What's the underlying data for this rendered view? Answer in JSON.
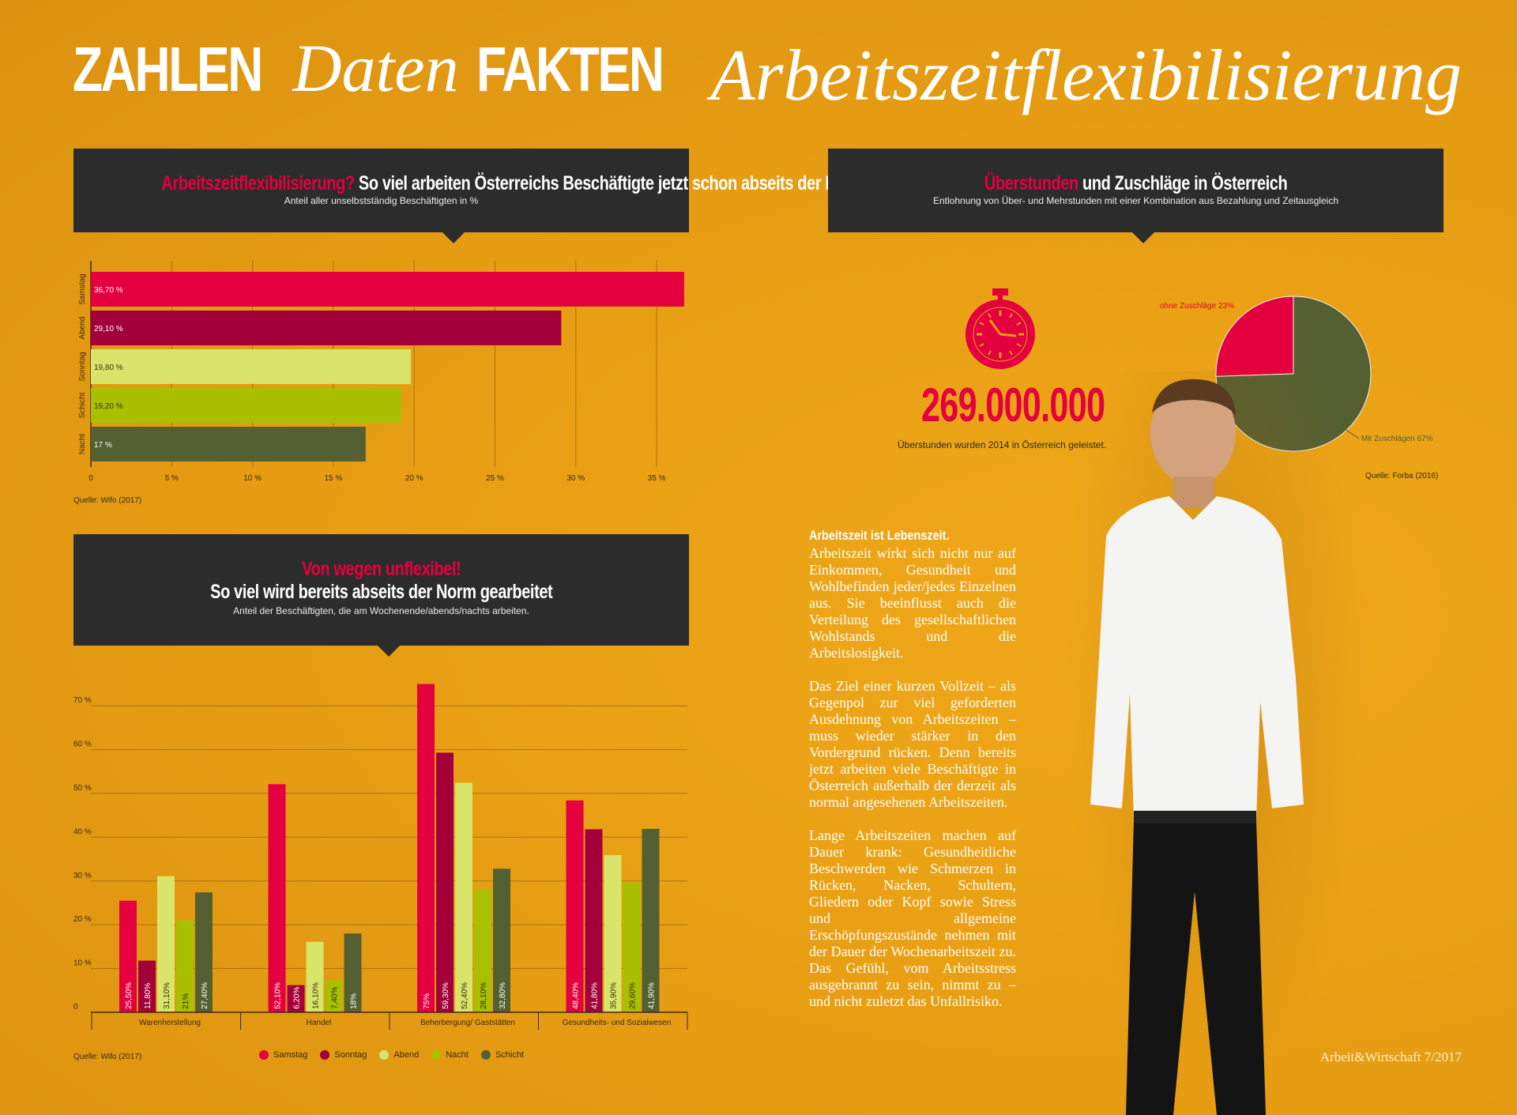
{
  "header": {
    "title_part1": "ZAHLEN",
    "title_part2": "Daten",
    "title_part3": "FAKTEN",
    "title_right": "Arbeitszeitflexibilisierung"
  },
  "colors": {
    "samstag": "#e4003f",
    "sonntag": "#a3003b",
    "abend": "#d9e46a",
    "nacht": "#a8c000",
    "schicht": "#556032",
    "banner": "#2d2c2c"
  },
  "chart1": {
    "title_red": "Arbeitszeitflexibilisierung?",
    "title_rest": "So viel arbeiten Österreichs Beschäftigte jetzt schon abseits der Norm",
    "subtitle": "Anteil aller unselbstständig Beschäftigten in %",
    "source": "Quelle: Wifo (2017)"
  },
  "chart2": {
    "title_red": "Von wegen unflexibel!",
    "title_rest": "So viel wird bereits abseits der Norm gearbeitet",
    "subtitle": "Anteil der Beschäftigten, die am Wochenende/abends/nachts arbeiten.",
    "source": "Quelle: Wifo (2017)"
  },
  "chart3": {
    "title_red": "Überstunden",
    "title_rest": "und Zuschläge in Österreich",
    "subtitle": "Entlohnung von Über- und Mehrstunden mit einer Kombination aus Bezahlung und Zeitausgleich",
    "big_number": "269.000.000",
    "big_number_caption": "Überstunden wurden 2014 in Österreich geleistet.",
    "source": "Quelle: Forba (2016)"
  },
  "article": {
    "heading": "Arbeitszeit ist Lebenszeit.",
    "p1": "Arbeitszeit wirkt sich nicht nur auf Einkommen, Gesundheit und Wohlbefinden jeder/jedes Einzelnen aus. Sie beeinflusst auch die Verteilung des gesellschaftlichen Wohlstands und die Arbeitslosigkeit.",
    "p2": "Das Ziel einer kurzen Vollzeit – als Gegenpol zur viel geforderten Ausdehnung von Arbeitszeiten – muss wieder stärker in den Vordergrund rücken. Denn bereits jetzt arbeiten viele Beschäftigte in Österreich außerhalb der derzeit als normal angesehenen Arbeitszeiten.",
    "p3": "Lange Arbeitszeiten machen auf Dauer krank: Gesundheitliche Beschwerden wie Schmerzen in Rücken, Nacken, Schultern, Gliedern oder Kopf sowie Stress und allgemeine Erschöpfungszustände nehmen mit der Dauer der Wochenarbeitszeit zu. Das Gefühl, vom Arbeitsstress ausgebrannt zu sein, nimmt zu – und nicht zuletzt das Unfallrisiko."
  },
  "footer": "Arbeit&Wirtschaft 7/2017",
  "chart_data": [
    {
      "type": "bar",
      "orientation": "horizontal",
      "categories": [
        "Samstag",
        "Abend",
        "Sonntag",
        "Schicht",
        "Nacht"
      ],
      "values": [
        36.7,
        29.1,
        19.8,
        19.2,
        17
      ],
      "value_labels": [
        "36,70 %",
        "29,10 %",
        "19,80 %",
        "19,20 %",
        "17 %"
      ],
      "bar_colors": [
        "#e4003f",
        "#a3003b",
        "#d9e46a",
        "#a8c000",
        "#556032"
      ],
      "xlim": [
        0,
        37
      ],
      "xticks": [
        0,
        5,
        10,
        15,
        20,
        25,
        30,
        35
      ],
      "xtick_labels": [
        "0",
        "5 %",
        "10 %",
        "15 %",
        "20 %",
        "25 %",
        "30 %",
        "35 %"
      ],
      "grid": true
    },
    {
      "type": "bar",
      "orientation": "vertical",
      "categories": [
        "Warenherstellung",
        "Handel",
        "Beherbergung/ Gaststätten",
        "Gesundheits- und Sozialwesen"
      ],
      "series": [
        {
          "name": "Samstag",
          "color": "#e4003f",
          "values": [
            25.5,
            52.1,
            75,
            48.4
          ],
          "labels": [
            "25,50%",
            "52,10%",
            "75%",
            "48,40%"
          ]
        },
        {
          "name": "Sonntag",
          "color": "#a3003b",
          "values": [
            11.8,
            6.2,
            59.3,
            41.8
          ],
          "labels": [
            "11,80%",
            "6,20%",
            "59,30%",
            "41,80%"
          ]
        },
        {
          "name": "Abend",
          "color": "#d9e46a",
          "values": [
            31.1,
            16.1,
            52.4,
            35.9
          ],
          "labels": [
            "31,10%",
            "16,10%",
            "52,40%",
            "35,90%"
          ]
        },
        {
          "name": "Nacht",
          "color": "#a8c000",
          "values": [
            21,
            7.4,
            28.1,
            29.6
          ],
          "labels": [
            "21%",
            "7,40%",
            "28,10%",
            "29,60%"
          ]
        },
        {
          "name": "Schicht",
          "color": "#556032",
          "values": [
            27.4,
            18,
            32.8,
            41.9
          ],
          "labels": [
            "27,40%",
            "18%",
            "32,80%",
            "41,90%"
          ]
        }
      ],
      "ylim": [
        0,
        76
      ],
      "yticks": [
        0,
        10,
        20,
        30,
        40,
        50,
        60,
        70
      ],
      "ytick_labels": [
        "0",
        "10 %",
        "20 %",
        "30 %",
        "40 %",
        "50 %",
        "60 %",
        "70 %"
      ],
      "grid": true,
      "legend_position": "bottom"
    },
    {
      "type": "pie",
      "labels": [
        "ohne Zuschläge 23%",
        "Mit Zuschlägen 67%"
      ],
      "values": [
        23,
        67
      ],
      "colors": [
        "#e4003f",
        "#556032"
      ]
    }
  ]
}
